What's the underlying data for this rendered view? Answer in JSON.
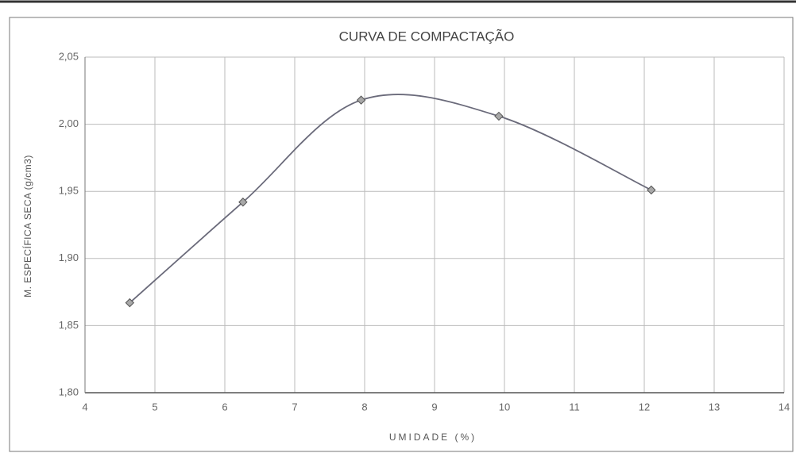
{
  "chart_data": {
    "type": "scatter",
    "title": "CURVA DE COMPACTAÇÃO",
    "xlabel": "UMIDADE (%)",
    "ylabel": "M. ESPECÍFICA SECA (g/cm3)",
    "series": [
      {
        "color": "#6a6a7a",
        "x": [
          4.64,
          6.26,
          7.95,
          9.92,
          12.1
        ],
        "values": [
          1.867,
          1.942,
          2.018,
          2.006,
          1.951
        ]
      }
    ],
    "smooth": true,
    "xlim": [
      4,
      14
    ],
    "xticks": [
      4,
      5,
      6,
      7,
      8,
      9,
      10,
      11,
      12,
      13,
      14
    ],
    "ylim": [
      1.8,
      2.05
    ],
    "yticks": [
      {
        "value": 1.8,
        "label": "1,80"
      },
      {
        "value": 1.85,
        "label": "1,85"
      },
      {
        "value": 1.9,
        "label": "1,90"
      },
      {
        "value": 1.95,
        "label": "1,95"
      },
      {
        "value": 2.0,
        "label": "2,00"
      },
      {
        "value": 2.05,
        "label": "2,05"
      }
    ],
    "grid": true
  }
}
